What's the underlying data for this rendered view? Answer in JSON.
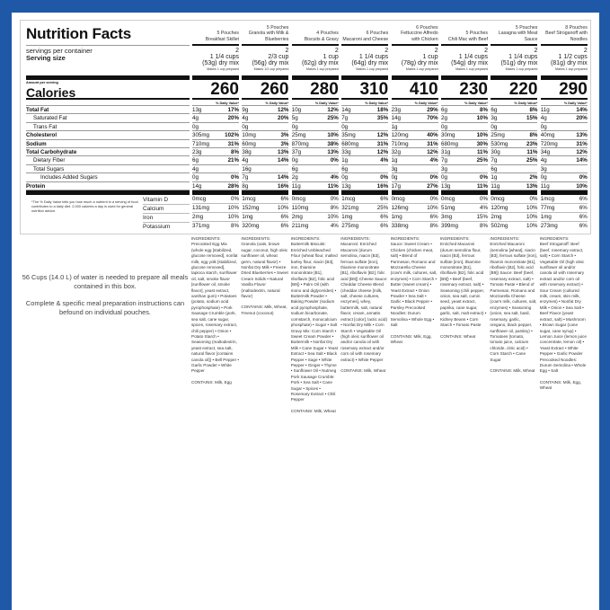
{
  "header": {
    "title": "Nutrition Facts",
    "servings_label": "servings per container",
    "serving_size_label": "Serving size",
    "amount_per_serving": "Amount per serving",
    "calories_label": "Calories",
    "dv_label": "% Daily Value*"
  },
  "nutrient_labels": [
    {
      "label": "Total Fat",
      "bold": true,
      "indent": 0
    },
    {
      "label": "Saturated Fat",
      "bold": false,
      "indent": 1
    },
    {
      "label": "Trans Fat",
      "bold": false,
      "indent": 1
    },
    {
      "label": "Cholesterol",
      "bold": true,
      "indent": 0
    },
    {
      "label": "Sodium",
      "bold": true,
      "indent": 0
    },
    {
      "label": "Total Carbohydrate",
      "bold": true,
      "indent": 0
    },
    {
      "label": "Dietary Fiber",
      "bold": false,
      "indent": 1
    },
    {
      "label": "Total Sugars",
      "bold": false,
      "indent": 1
    },
    {
      "label": "Includes Added Sugars",
      "bold": false,
      "indent": 2
    },
    {
      "label": "Protein",
      "bold": true,
      "indent": 0
    }
  ],
  "vitamin_labels": [
    "Vitamin D",
    "Calcium",
    "Iron",
    "Potassium"
  ],
  "footnote": "*The % Daily Value tells you how much a nutrient in a serving of food contributes to a daily diet. 2,000 calories a day is used for general nutrition advice.",
  "notes": [
    "56 Cups (14.0 L) of water is needed to prepare all meals contained in this box.",
    "Complete & specific meal preparation instructions can befound on individual pouches."
  ],
  "ingredients_label": "INGREDIENTS:",
  "products": [
    {
      "count": "5 Pouches",
      "name": "Breakfast Skillet",
      "servings": "2",
      "size": "1 1/4 cups",
      "weight": "(53g) dry mix",
      "makes": "Makes 1 cup prepared",
      "calories": "260",
      "nutrients": [
        [
          "13g",
          "17%"
        ],
        [
          "4g",
          "20%"
        ],
        [
          "0g",
          ""
        ],
        [
          "305mg",
          "102%"
        ],
        [
          "710mg",
          "31%"
        ],
        [
          "23g",
          "8%"
        ],
        [
          "6g",
          "21%"
        ],
        [
          "4g",
          ""
        ],
        [
          "0g",
          "0%"
        ],
        [
          "14g",
          "28%"
        ]
      ],
      "vitamins": [
        [
          "0mcg",
          "0%"
        ],
        [
          "131mg",
          "10%"
        ],
        [
          "2mg",
          "10%"
        ],
        [
          "371mg",
          "8%"
        ]
      ],
      "ingredients": "Precooked Egg Mix (whole egg [stabilized, glucose removed], nonfat milk, egg yolk [stabilized, glucose removed], tapioca starch, sunflower oil, salt, smoke flavor [sunflower oil, smoke flavor], yeast extract, xanthan gum) • Potatoes (potato, sodium acid pyrophosphate) • Pork Sausage Crumble (pork, sea salt, cane sugar, spices, rosemary extract, chili pepper) • Onion • Potato Starch • Seasoning (maltodextrin, yeast extract, sea salt, natural flavor [contains canola oil]) • Bell Pepper • Garlic Powder • White Pepper",
      "contains": "CONTAINS: Milk, Egg"
    },
    {
      "count": "5 Pouches",
      "name": "Granola with Milk & Blueberries",
      "servings": "2",
      "size": "2/3 cup",
      "weight": "(56g) dry mix",
      "makes": "Makes 1/2 cup prepared",
      "calories": "260",
      "nutrients": [
        [
          "9g",
          "12%"
        ],
        [
          "4g",
          "20%"
        ],
        [
          "0g",
          ""
        ],
        [
          "10mg",
          "3%"
        ],
        [
          "60mg",
          "3%"
        ],
        [
          "38g",
          "13%"
        ],
        [
          "4g",
          "14%"
        ],
        [
          "16g",
          ""
        ],
        [
          "7g",
          "14%"
        ],
        [
          "8g",
          "16%"
        ]
      ],
      "vitamins": [
        [
          "1mcg",
          "6%"
        ],
        [
          "152mg",
          "10%"
        ],
        [
          "1mg",
          "6%"
        ],
        [
          "320mg",
          "6%"
        ]
      ],
      "ingredients": "Granola (oats, brown sugar, coconut, high oleic sunflower oil, wheat germ, natural flavor) • Nonfat Dry Milk • Freeze Dried Blueberries • Sweet Cream Solids • Natural Vanilla Flavor (maltodextrin, natural flavor)",
      "contains": "CONTAINS: Milk, Wheat, Treenut (coconut)"
    },
    {
      "count": "4 Pouches",
      "name": "Biscuits & Gravy",
      "servings": "2",
      "size": "1 cup",
      "weight": "(62g) dry mix",
      "makes": "Makes 1 cup prepared",
      "calories": "280",
      "nutrients": [
        [
          "10g",
          "12%"
        ],
        [
          "5g",
          "25%"
        ],
        [
          "0g",
          ""
        ],
        [
          "25mg",
          "10%"
        ],
        [
          "870mg",
          "38%"
        ],
        [
          "37g",
          "13%"
        ],
        [
          "0g",
          "0%"
        ],
        [
          "6g",
          ""
        ],
        [
          "2g",
          "4%"
        ],
        [
          "11g",
          "11%"
        ]
      ],
      "vitamins": [
        [
          "0mcg",
          "0%"
        ],
        [
          "110mg",
          "8%"
        ],
        [
          "2mg",
          "10%"
        ],
        [
          "211mg",
          "4%"
        ]
      ],
      "ingredients": "Buttermilk Biscuits: Enriched Unbleached Flour (wheat flour, malted barley flour, niacin [B3], iron, thiamine mononitrate [B1], riboflavin [B2], folic acid [B9]) • Palm Oil (with mono and diglycerides) • Buttermilk Powder • Baking Powder (sodium acid pyrophosphate, sodium bicarbonate, cornstarch, monocalcium phosphate) • Sugar • Salt Gravy Mix: Corn Starch • Sweet Cream Powder • Buttermilk • Nonfat Dry Milk • Cane Sugar • Yeast Extract • Sea Salt • Black Pepper • Sage • White Pepper • Ginger • Thyme • Sunflower Oil • Nutmeg Pork Sausage Crumble: Pork • Sea Salt • Cane Sugar • Spices • Rosemary Extract • Chili Pepper",
      "contains": "CONTAINS: Milk, Wheat"
    },
    {
      "count": "6 Pouches",
      "name": "Macaroni and Cheese",
      "servings": "2",
      "size": "1 1/4 cups",
      "weight": "(64g) dry mix",
      "makes": "Makes 1 cup prepared",
      "calories": "310",
      "nutrients": [
        [
          "14g",
          "18%"
        ],
        [
          "7g",
          "35%"
        ],
        [
          "0g",
          ""
        ],
        [
          "35mg",
          "12%"
        ],
        [
          "680mg",
          "31%"
        ],
        [
          "33g",
          "12%"
        ],
        [
          "1g",
          "4%"
        ],
        [
          "6g",
          ""
        ],
        [
          "0g",
          "0%"
        ],
        [
          "13g",
          "16%"
        ]
      ],
      "vitamins": [
        [
          "1mcg",
          "6%"
        ],
        [
          "321mg",
          "25%"
        ],
        [
          "1mg",
          "6%"
        ],
        [
          "275mg",
          "6%"
        ]
      ],
      "ingredients": "Macaroni: Enriched Macaroni (durum semolina, niacin [B3], ferrous sulfate [iron], thiamine mononitrate [B1], riboflavin [B2], folic acid [B9]) Cheese Sauce: Cheddar Cheese Blend (cheddar cheese [milk, salt, cheese cultures, enzymes], whey, buttermilk, salt, natural flavor, cream, annatto extract [color], lactic acid) • Nonfat Dry Milk • Corn Starch • Vegetable Oil (high oleic sunflower oil and/or canola oil with rosemary extract and/or corn oil with rosemary extract) • White Pepper",
      "contains": "CONTAINS: Milk, Wheat"
    },
    {
      "count": "6 Pouches",
      "name": "Fettuccine Alfredo with Chicken",
      "servings": "2",
      "size": "1 cup",
      "weight": "(78g) dry mix",
      "makes": "Makes 1 cup prepared",
      "calories": "410",
      "nutrients": [
        [
          "23g",
          "29%"
        ],
        [
          "14g",
          "70%"
        ],
        [
          "1g",
          ""
        ],
        [
          "120mg",
          "40%"
        ],
        [
          "710mg",
          "31%"
        ],
        [
          "32g",
          "12%"
        ],
        [
          "1g",
          "4%"
        ],
        [
          "3g",
          ""
        ],
        [
          "0g",
          "0%"
        ],
        [
          "17g",
          "27%"
        ]
      ],
      "vitamins": [
        [
          "0mcg",
          "0%"
        ],
        [
          "126mg",
          "10%"
        ],
        [
          "1mg",
          "6%"
        ],
        [
          "338mg",
          "8%"
        ]
      ],
      "ingredients": "Sauce: Sweet Cream • Chicken (chicken meat, salt) • Blend of Parmesan, Romano and Mozzarella Cheese (cow's milk, cultures, salt, enzymes) • Corn Starch • Butter (sweet cream) • Yeast Extract • Onion Powder • Sea Salt • Garlic • Black Pepper • Parsley Precooked Noodles: Durum Semolina • Whole Egg • Salt",
      "contains": "CONTAINS: Milk, Egg, Wheat"
    },
    {
      "count": "5 Pouches",
      "name": "Chili Mac with Beef",
      "servings": "2",
      "size": "1 1/4 cups",
      "weight": "(54g) dry mix",
      "makes": "Makes 1 cup prepared",
      "calories": "230",
      "nutrients": [
        [
          "6g",
          "8%"
        ],
        [
          "2g",
          "10%"
        ],
        [
          "0g",
          ""
        ],
        [
          "30mg",
          "10%"
        ],
        [
          "680mg",
          "30%"
        ],
        [
          "31g",
          "11%"
        ],
        [
          "7g",
          "25%"
        ],
        [
          "3g",
          ""
        ],
        [
          "0g",
          "0%"
        ],
        [
          "13g",
          "11%"
        ]
      ],
      "vitamins": [
        [
          "0mcg",
          "0%"
        ],
        [
          "51mg",
          "4%"
        ],
        [
          "3mg",
          "15%"
        ],
        [
          "399mg",
          "8%"
        ]
      ],
      "ingredients": "Enriched Macaroni (durum semolina flour, niacin [B3], ferrous sulfate [iron], thiamine mononitrate [B1], riboflavin [B2], folic acid [B9]) • Beef (beef, rosemary extract, salt) • Seasoning (chili pepper, onion, sea salt, cumin seed, yeast extract, paprika, cane sugar, garlic, salt, malt extract) • Kidney Beans • Corn Starch • Tomato Paste",
      "contains": "CONTAINS: Wheat"
    },
    {
      "count": "5 Pouches",
      "name": "Lasagna with Meat Sauce",
      "servings": "2",
      "size": "1 1/4 cups",
      "weight": "(51g) dry mix",
      "makes": "Makes 1 cup prepared",
      "calories": "220",
      "nutrients": [
        [
          "6g",
          "8%"
        ],
        [
          "3g",
          "15%"
        ],
        [
          "0g",
          ""
        ],
        [
          "25mg",
          "8%"
        ],
        [
          "530mg",
          "23%"
        ],
        [
          "30g",
          "11%"
        ],
        [
          "7g",
          "25%"
        ],
        [
          "6g",
          ""
        ],
        [
          "1g",
          "2%"
        ],
        [
          "11g",
          "13%"
        ]
      ],
      "vitamins": [
        [
          "0mcg",
          "0%"
        ],
        [
          "120mg",
          "10%"
        ],
        [
          "2mg",
          "10%"
        ],
        [
          "502mg",
          "10%"
        ]
      ],
      "ingredients": "Enriched Macaroni (semolina [wheat], niacin [B3], ferrous sulfate [iron], thiamin mononitrate [B1], riboflavin [B2], folic acid [B9]) Sauce: Beef (beef, rosemary extract, salt) • Tomato Paste • Blend of Parmesan, Romano and Mozzarella Cheese (cow's milk, cultures, salt, enzymes) • Seasoning (onion, sea salt, basil, rosemary, garlic, oregano, black pepper, sunflower oil, parsley) • Tomatoes (tomato, tomato juice, calcium chloride, citric acid) • Corn Starch • Cane Sugar",
      "contains": "CONTAINS: Milk, Wheat"
    },
    {
      "count": "8 Pouches",
      "name": "Beef Stroganoff with Noodles",
      "servings": "2",
      "size": "1 1/2 cups",
      "weight": "(81g) dry mix",
      "makes": "Makes 1 cup prepared",
      "calories": "290",
      "nutrients": [
        [
          "11g",
          "14%"
        ],
        [
          "4g",
          "20%"
        ],
        [
          "0g",
          ""
        ],
        [
          "40mg",
          "13%"
        ],
        [
          "720mg",
          "31%"
        ],
        [
          "34g",
          "12%"
        ],
        [
          "4g",
          "14%"
        ],
        [
          "3g",
          ""
        ],
        [
          "0g",
          "0%"
        ],
        [
          "11g",
          "10%"
        ]
      ],
      "vitamins": [
        [
          "1mcg",
          "6%"
        ],
        [
          "77mg",
          "6%"
        ],
        [
          "1mg",
          "6%"
        ],
        [
          "273mg",
          "6%"
        ]
      ],
      "ingredients": "Beef Stroganoff: Beef (beef, rosemary extract, salt) • Corn Starch • Vegetable Oil (high oleic sunflower oil and/or canola oil with rosemary extract and/or corn oil with rosemary extract) • Sour Cream (cultured milk, cream, skin milk, enzymes) • Nonfat Dry Milk • Onion • Sea Salt • Beef Flavor (yeast extract, salt) • Mushroom • Brown Sugar (cane sugar, cane syrup) • Lemon Juice (lemon juice concentrate, lemon oil) • Yeast Extract • White Pepper • Garlic Powder Precooked Noodles: Durum Semolina • Whole Egg • Salt",
      "contains": "CONTAINS: Milk, Egg, Wheat"
    }
  ],
  "colors": {
    "background": "#1f58a6",
    "panel": "#ffffff",
    "rule": "#111111"
  }
}
